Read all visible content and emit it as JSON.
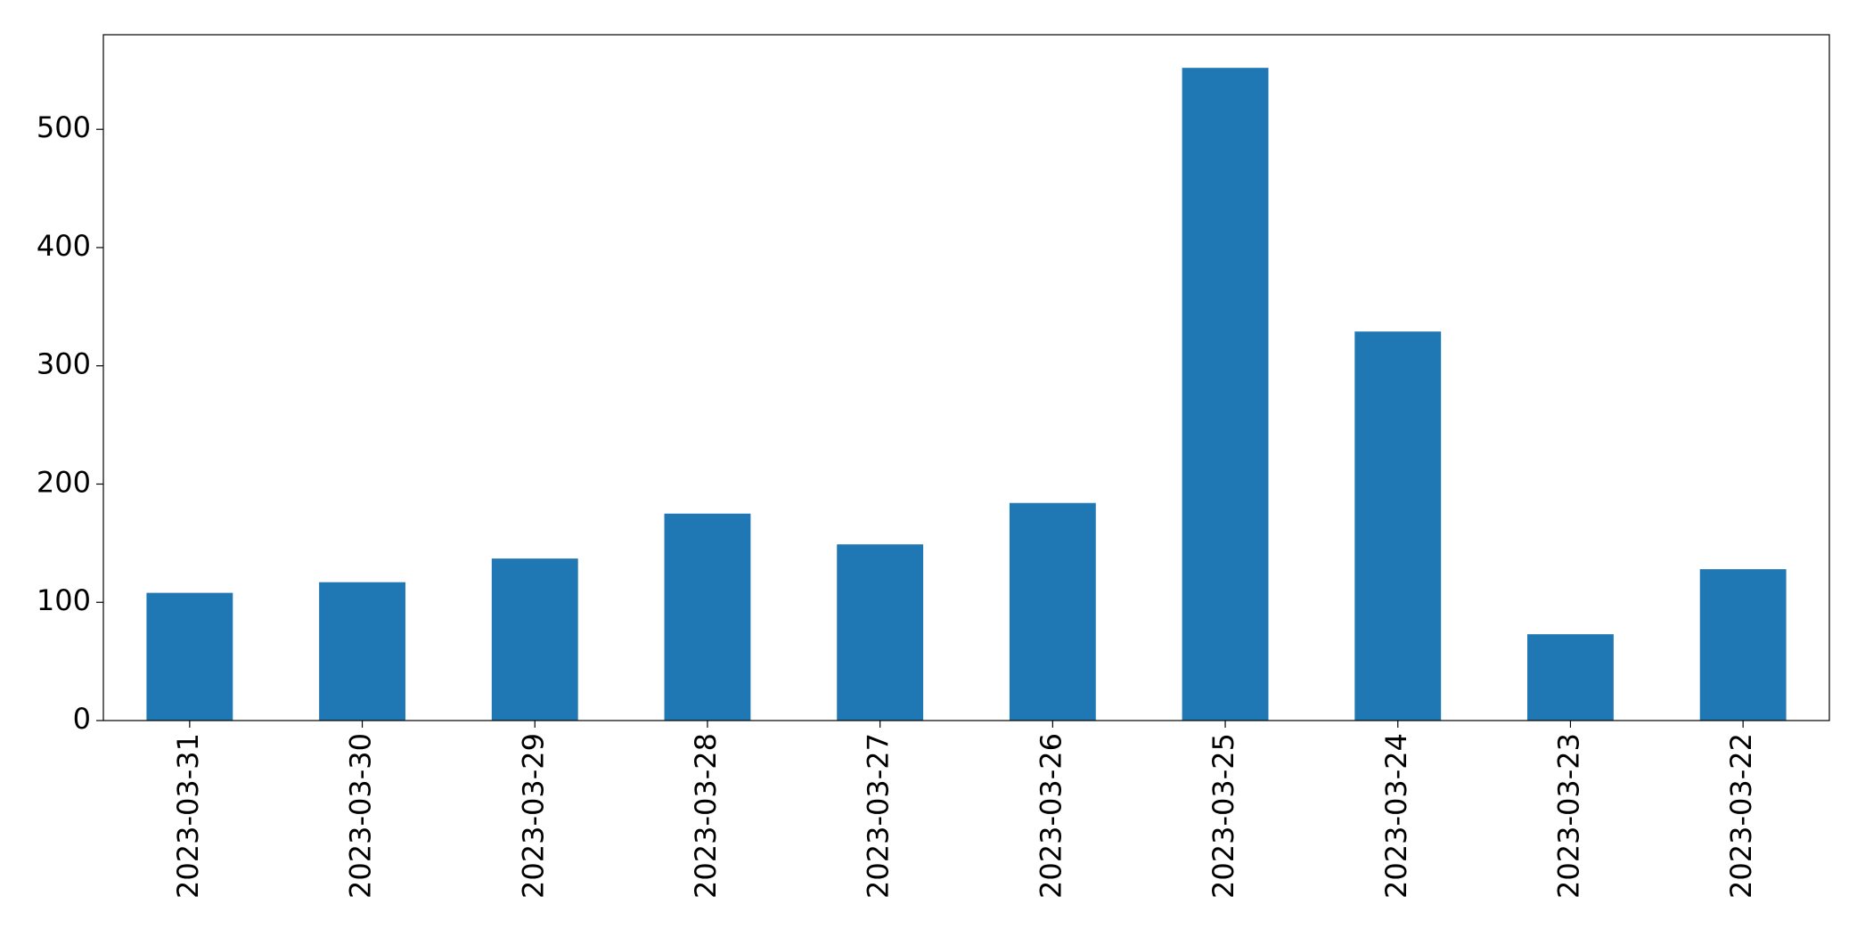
{
  "chart_data": {
    "type": "bar",
    "categories": [
      "2023-03-31",
      "2023-03-30",
      "2023-03-29",
      "2023-03-28",
      "2023-03-27",
      "2023-03-26",
      "2023-03-25",
      "2023-03-24",
      "2023-03-23",
      "2023-03-22"
    ],
    "values": [
      108,
      117,
      137,
      175,
      149,
      184,
      552,
      329,
      73,
      128
    ],
    "color": "#1f77b4",
    "ylim": [
      0,
      580
    ],
    "yticks": [
      0,
      100,
      200,
      300,
      400,
      500
    ],
    "grid": false
  }
}
